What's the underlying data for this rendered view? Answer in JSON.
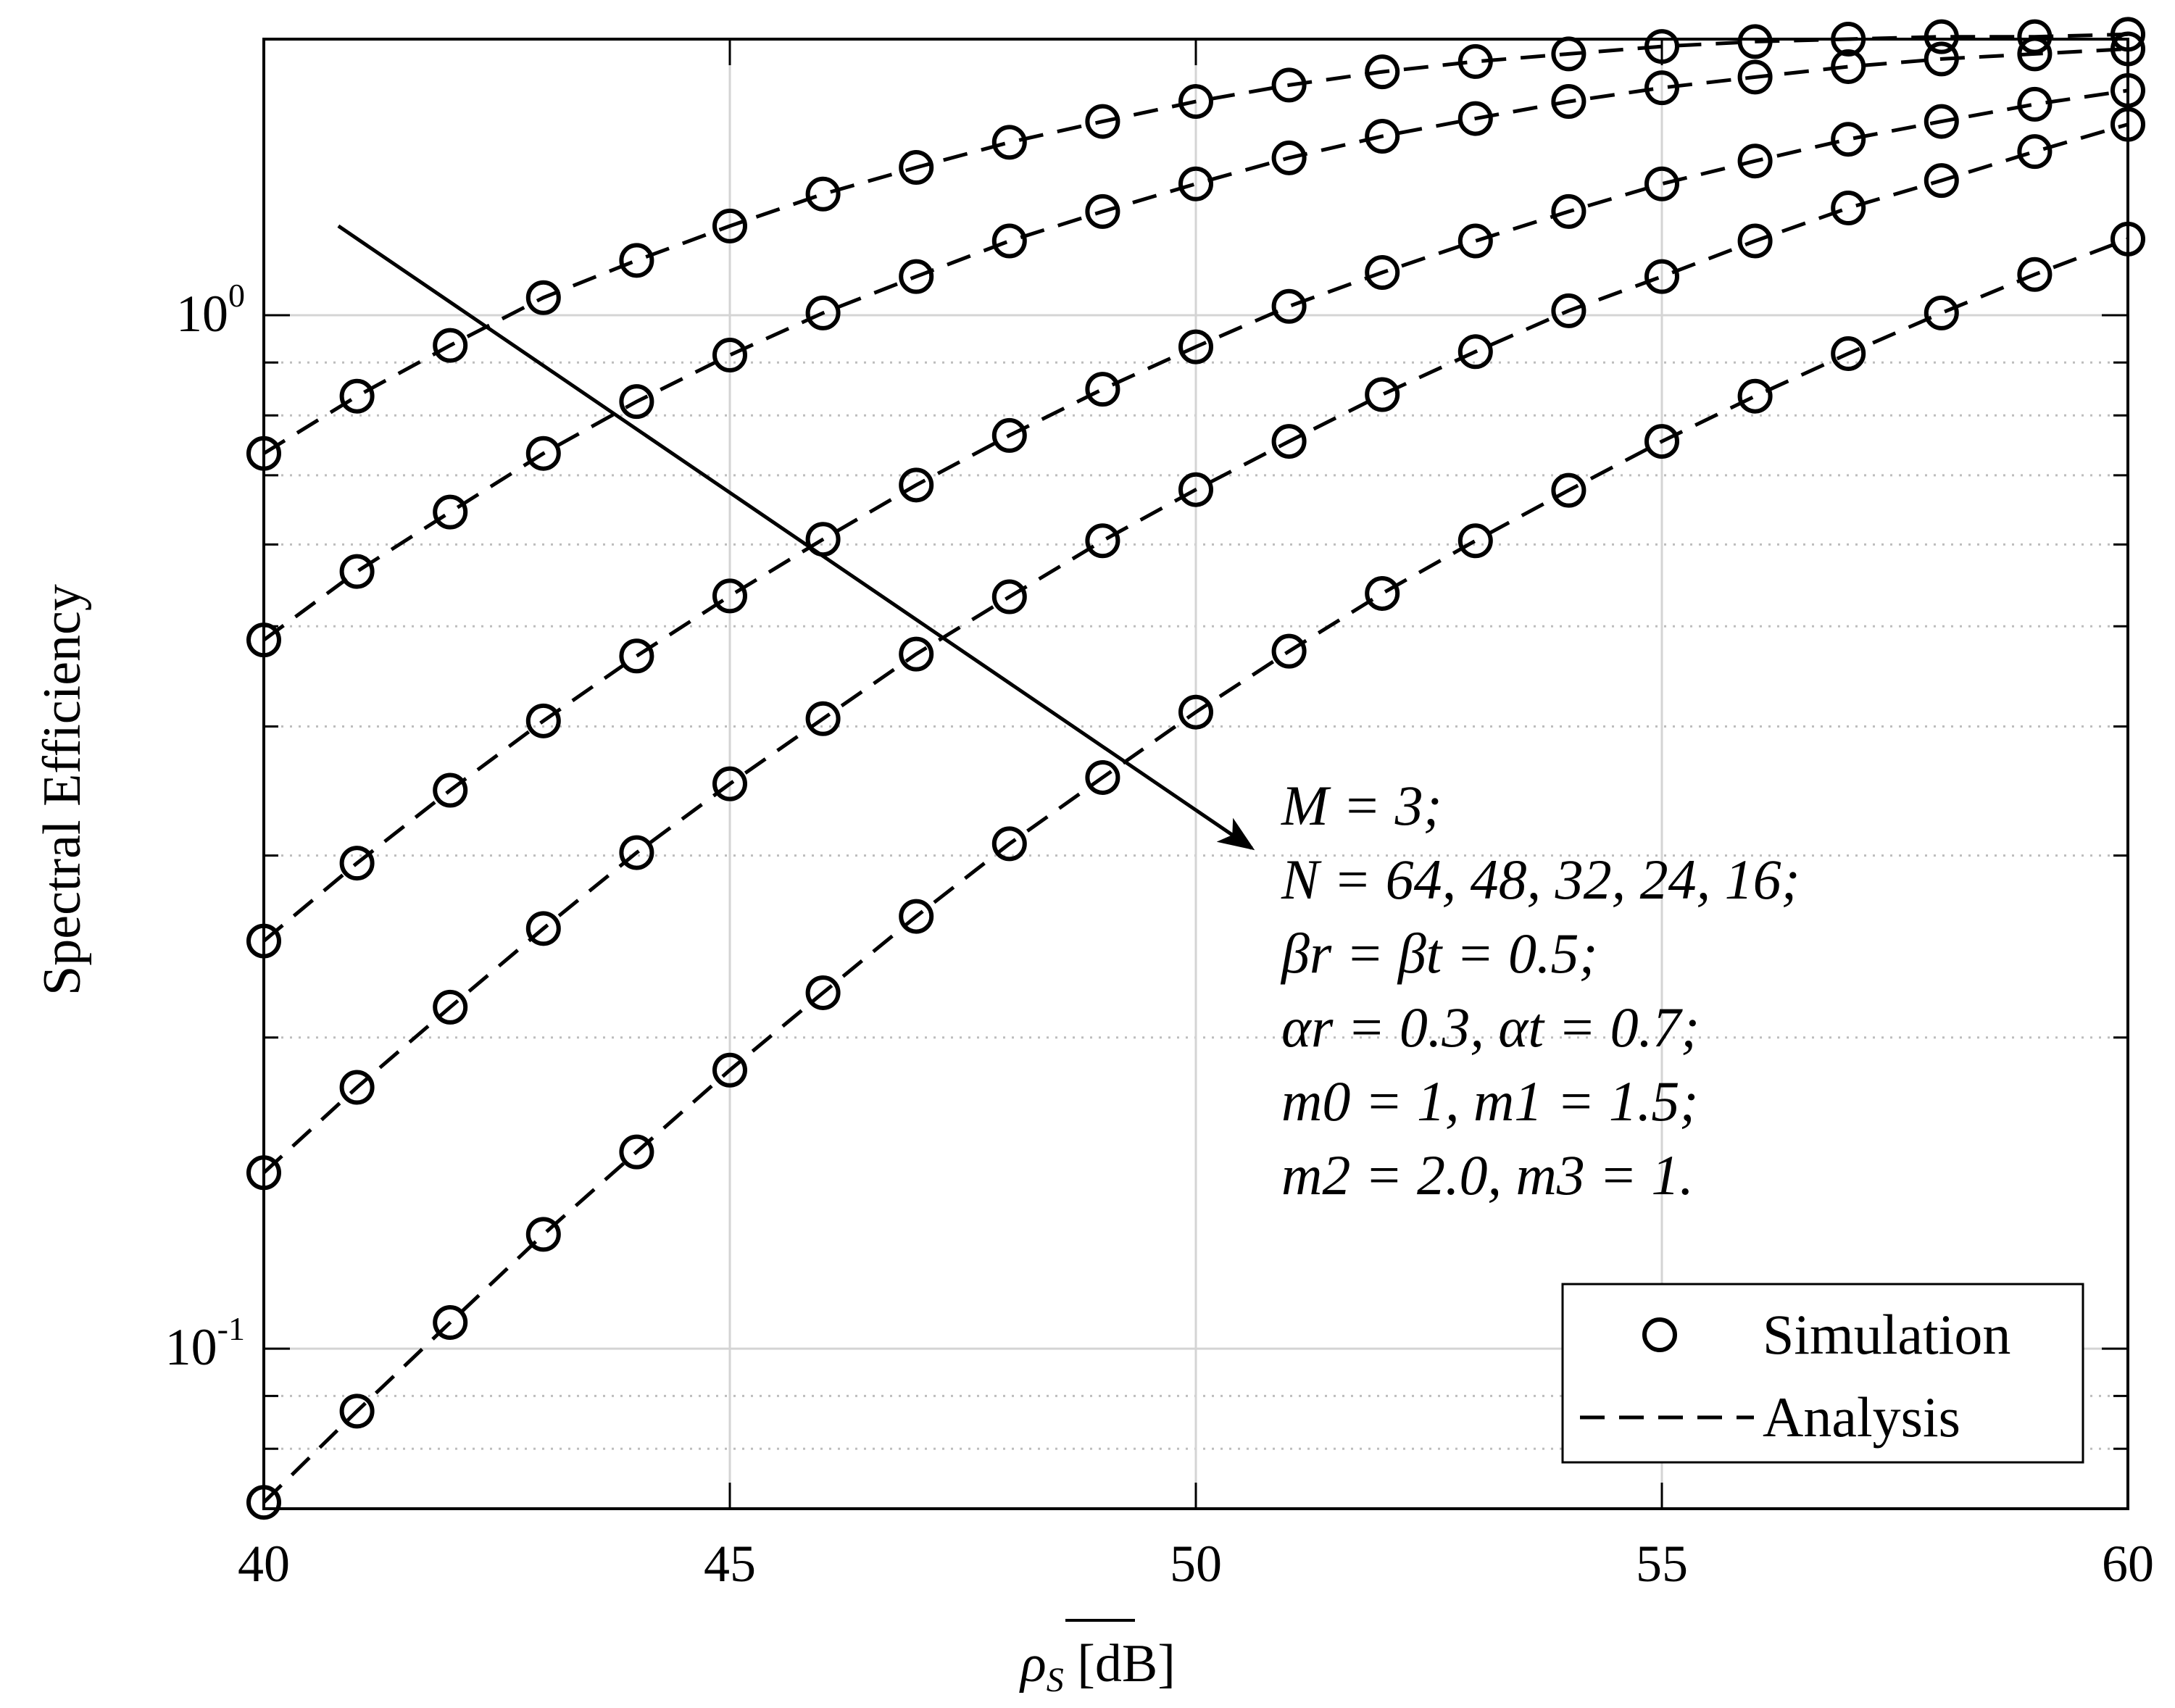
{
  "chart_data": {
    "type": "line",
    "title": "",
    "xlabel": "ρ̅S [dB]",
    "xlabel_main": "ρ",
    "xlabel_sub": "S",
    "xlabel_unit": " [dB]",
    "ylabel": "Spectral Efficiency",
    "yscale": "log",
    "xlim": [
      40,
      60
    ],
    "ylim": [
      0.07,
      1.85
    ],
    "grid": true,
    "x_ticks": [
      40,
      45,
      50,
      55,
      60
    ],
    "x_tick_labels": [
      "40",
      "45",
      "50",
      "55",
      "60"
    ],
    "y_ticks": [
      {
        "base": "10",
        "exp": "0",
        "value": 1.0
      },
      {
        "base": "10",
        "exp": "-1",
        "value": 0.1
      }
    ],
    "x": [
      40,
      41,
      42,
      43,
      44,
      45,
      46,
      47,
      48,
      49,
      50,
      51,
      52,
      53,
      54,
      55,
      56,
      57,
      58,
      59,
      60
    ],
    "series": [
      {
        "name": "N = 64",
        "values": [
          0.735,
          0.835,
          0.935,
          1.04,
          1.13,
          1.22,
          1.31,
          1.39,
          1.47,
          1.54,
          1.61,
          1.67,
          1.72,
          1.76,
          1.79,
          1.82,
          1.84,
          1.85,
          1.86,
          1.86,
          1.87
        ]
      },
      {
        "name": "N = 48",
        "values": [
          0.485,
          0.565,
          0.645,
          0.735,
          0.825,
          0.915,
          1.005,
          1.09,
          1.18,
          1.26,
          1.34,
          1.42,
          1.49,
          1.55,
          1.61,
          1.66,
          1.7,
          1.74,
          1.77,
          1.79,
          1.81
        ]
      },
      {
        "name": "N = 32",
        "values": [
          0.248,
          0.295,
          0.347,
          0.405,
          0.468,
          0.535,
          0.607,
          0.685,
          0.765,
          0.848,
          0.932,
          1.02,
          1.1,
          1.18,
          1.26,
          1.34,
          1.41,
          1.48,
          1.54,
          1.6,
          1.65
        ]
      },
      {
        "name": "N = 24",
        "values": [
          0.148,
          0.179,
          0.214,
          0.255,
          0.302,
          0.352,
          0.407,
          0.47,
          0.534,
          0.605,
          0.678,
          0.755,
          0.838,
          0.922,
          1.01,
          1.09,
          1.18,
          1.27,
          1.35,
          1.44,
          1.53
        ]
      },
      {
        "name": "N = 16",
        "values": [
          0.071,
          0.087,
          0.106,
          0.129,
          0.155,
          0.186,
          0.221,
          0.262,
          0.308,
          0.357,
          0.413,
          0.473,
          0.538,
          0.605,
          0.677,
          0.755,
          0.835,
          0.918,
          1.005,
          1.095,
          1.185
        ]
      }
    ],
    "legend": {
      "position": "bottom-right",
      "entries": [
        {
          "label": "Simulation",
          "marker": "circle"
        },
        {
          "label": "Analysis",
          "line": "dashed"
        }
      ]
    },
    "annotation": {
      "arrow_from": {
        "x": 40.8,
        "y": 1.22
      },
      "arrow_to": {
        "x": 50.6,
        "y": 0.305
      },
      "lines": [
        "M = 3;",
        "N = 64, 48, 32, 24, 16;",
        "βr = βt = 0.5;",
        "αr = 0.3, αt = 0.7;",
        "m0 = 1, m1 = 1.5;",
        "m2 = 2.0, m3 = 1."
      ]
    }
  }
}
